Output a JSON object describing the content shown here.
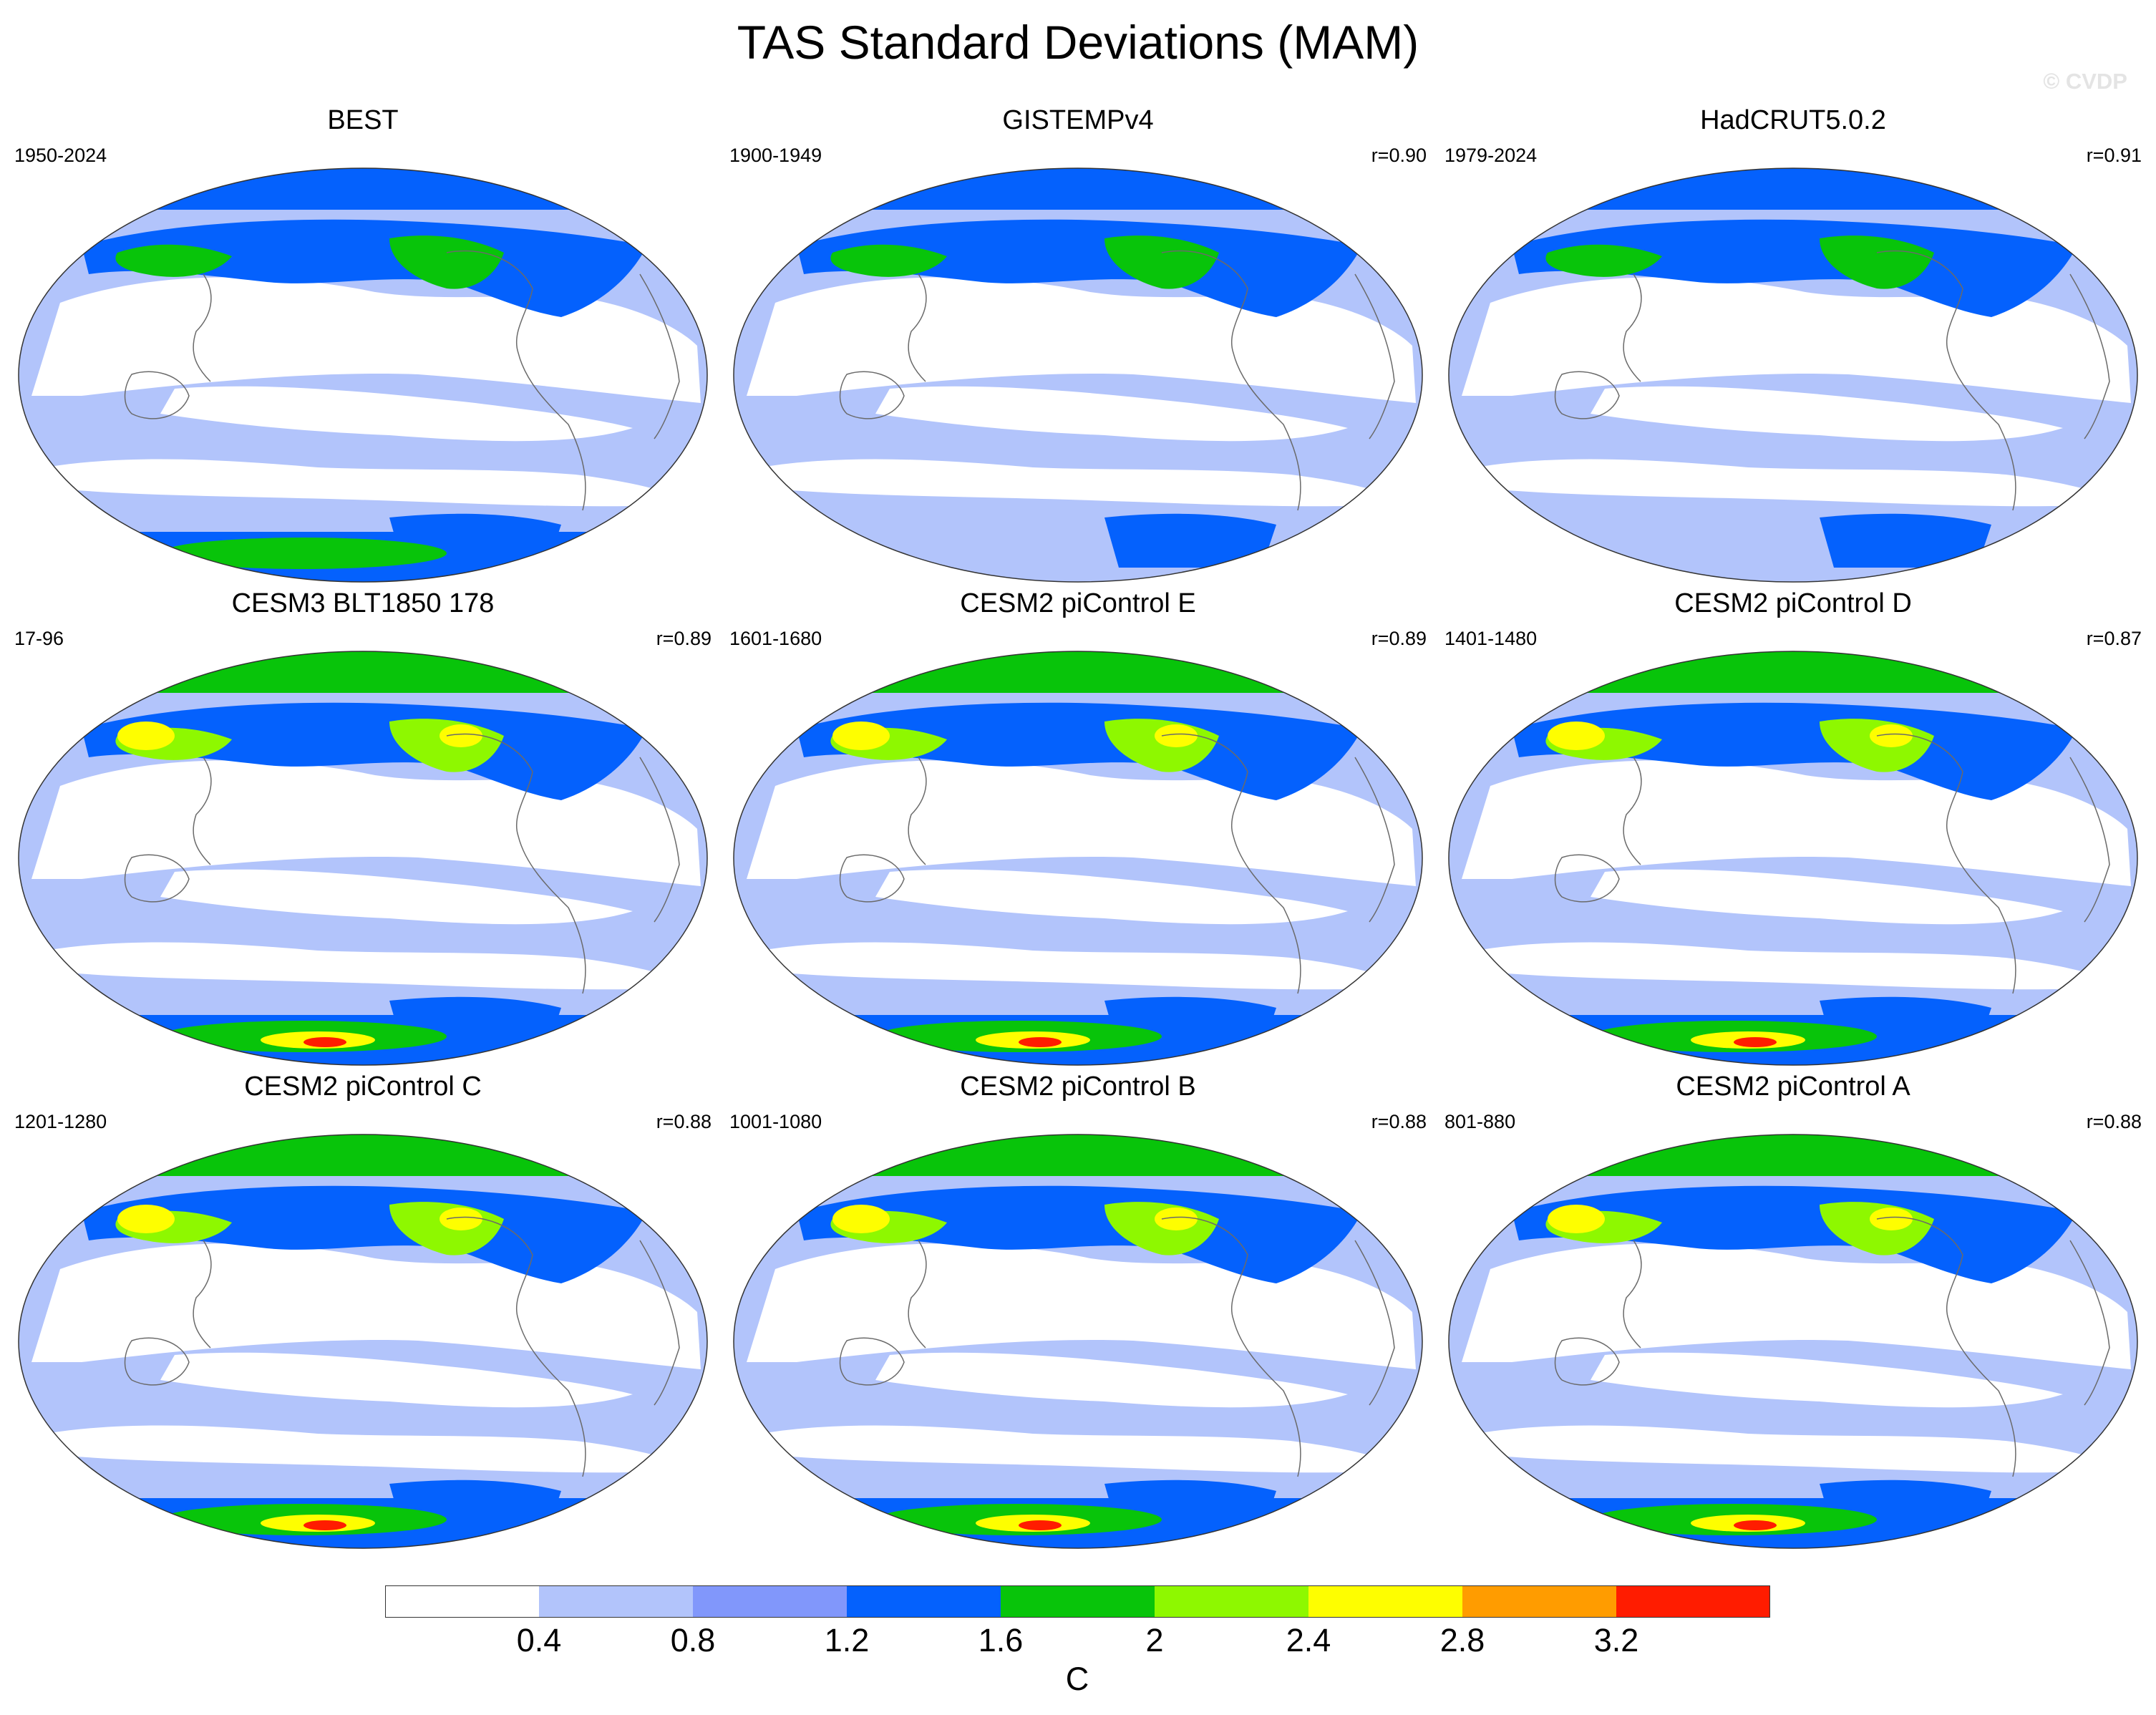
{
  "title": "TAS Standard Deviations (MAM)",
  "credit": "© CVDP",
  "levels": {
    "colors": [
      "#ffffff",
      "#b2c4fb",
      "#8197fb",
      "#0461fd",
      "#08c40a",
      "#8ef800",
      "#fefe00",
      "#ff9c00",
      "#ff1c00"
    ],
    "labels": [
      "0.4",
      "0.8",
      "1.2",
      "1.6",
      "2",
      "2.4",
      "2.8",
      "3.2"
    ],
    "units": "C"
  },
  "panels": [
    {
      "title": "BEST",
      "period": "1950-2024",
      "corr": ""
    },
    {
      "title": "GISTEMPv4",
      "period": "1900-1949",
      "corr": "r=0.90"
    },
    {
      "title": "HadCRUT5.0.2",
      "period": "1979-2024",
      "corr": "r=0.91"
    },
    {
      "title": "CESM3 BLT1850 178",
      "period": "17-96",
      "corr": "r=0.89"
    },
    {
      "title": "CESM2 piControl E",
      "period": "1601-1680",
      "corr": "r=0.89"
    },
    {
      "title": "CESM2 piControl D",
      "period": "1401-1480",
      "corr": "r=0.87"
    },
    {
      "title": "CESM2 piControl C",
      "period": "1201-1280",
      "corr": "r=0.88"
    },
    {
      "title": "CESM2 piControl B",
      "period": "1001-1080",
      "corr": "r=0.88"
    },
    {
      "title": "CESM2 piControl A",
      "period": "801-880",
      "corr": "r=0.88"
    }
  ]
}
